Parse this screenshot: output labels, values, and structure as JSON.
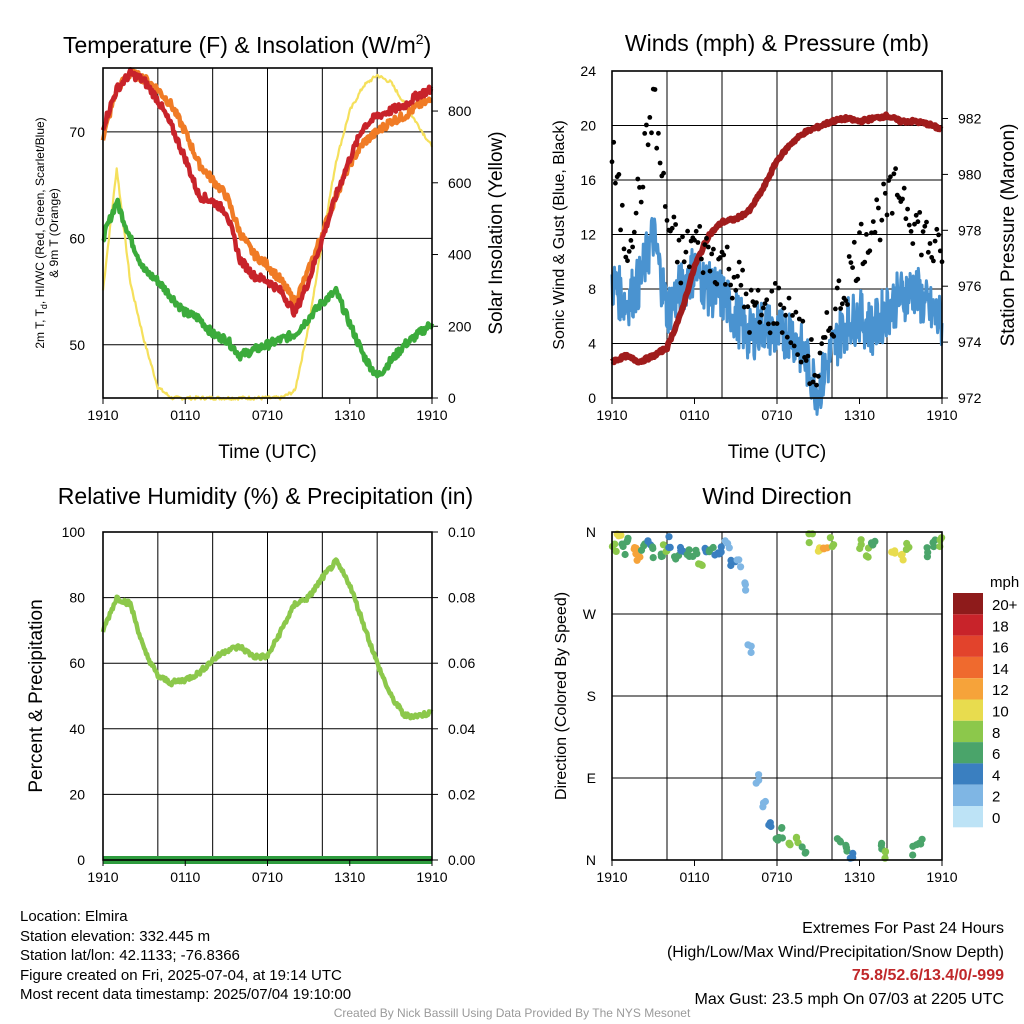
{
  "colors": {
    "temp_red": "#c8232a",
    "temp_orange": "#f07b25",
    "dewpoint_green": "#3bab3b",
    "insolation_yellow": "#f5e05c",
    "wind_blue": "#4a93d0",
    "gust_black": "#000000",
    "pressure_maroon": "#a01c1c",
    "rh_green": "#8cc84b",
    "precip_green": "#2e9c3e",
    "extremes_red": "#c0282a",
    "credit_gray": "#9a9a9a"
  },
  "time_ticks": [
    "1910",
    "0110",
    "0710",
    "1310",
    "1910"
  ],
  "station": {
    "location": "Location: Elmira",
    "elevation": "Station elevation: 332.445 m",
    "latlon": "Station lat/lon: 42.1133; -76.8366",
    "created": "Figure created on Fri, 2025-07-04, at 19:14 UTC",
    "recent": "Most recent data timestamp: 2025/07/04 19:10:00"
  },
  "extremes": {
    "title": "Extremes For Past 24 Hours",
    "legend": "(High/Low/Max Wind/Precipitation/Snow Depth)",
    "values": "75.8/52.6/13.4/0/-999",
    "gust": "Max Gust: 23.5 mph On 07/03 at 2205 UTC"
  },
  "credit": "Created By Nick Bassill Using Data Provided By The NYS Mesonet",
  "chart_data": [
    {
      "id": "temperature",
      "type": "line",
      "title": "Temperature (F) & Insolation (W/m²)",
      "xlabel": "Time (UTC)",
      "ylabel_left": "2m T, Td, HI/WC (Red, Green, Scarlet/Blue) & 9m T (Orange)",
      "ylabel_right": "Solar Insolation (Yellow)",
      "ylim_left": [
        45,
        76
      ],
      "ylim_right": [
        0,
        920
      ],
      "yticks_left": [
        50,
        60,
        70
      ],
      "yticks_right": [
        0,
        200,
        400,
        600,
        800
      ],
      "x": [
        0,
        1,
        2,
        3,
        4,
        5,
        6,
        7,
        8,
        9,
        10,
        11,
        12,
        13,
        14,
        15,
        16,
        17,
        18,
        19,
        20,
        21,
        22,
        23,
        24
      ],
      "series": [
        {
          "name": "2m T",
          "axis": "left",
          "color": "#c8232a",
          "values": [
            70.5,
            74.0,
            75.5,
            74.8,
            73.0,
            70.5,
            67.5,
            64.0,
            63.5,
            62.5,
            58.0,
            56.5,
            56.0,
            55.0,
            53.0,
            56.0,
            60.0,
            64.0,
            67.5,
            70.5,
            71.5,
            72.0,
            72.5,
            73.5,
            74.0
          ]
        },
        {
          "name": "9m T",
          "axis": "left",
          "color": "#f07b25",
          "values": [
            69.5,
            74.0,
            75.5,
            75.0,
            74.0,
            72.5,
            70.0,
            67.0,
            65.5,
            64.0,
            60.5,
            58.5,
            57.5,
            56.0,
            54.0,
            57.0,
            60.5,
            64.0,
            67.0,
            69.0,
            70.0,
            71.0,
            71.5,
            72.5,
            73.0
          ]
        },
        {
          "name": "Td",
          "axis": "left",
          "color": "#3bab3b",
          "values": [
            60.0,
            63.5,
            60.0,
            57.0,
            56.0,
            54.5,
            53.0,
            52.5,
            51.0,
            50.5,
            49.0,
            49.5,
            50.0,
            50.5,
            51.0,
            52.5,
            54.0,
            55.0,
            52.0,
            49.0,
            47.0,
            48.5,
            50.0,
            51.0,
            52.0
          ]
        },
        {
          "name": "Insolation",
          "axis": "right",
          "color": "#f5e05c",
          "values": [
            300,
            640,
            320,
            160,
            30,
            0,
            0,
            0,
            0,
            0,
            0,
            0,
            0,
            0,
            20,
            200,
            440,
            660,
            800,
            870,
            900,
            880,
            820,
            760,
            700
          ]
        }
      ]
    },
    {
      "id": "winds",
      "type": "line",
      "title": "Winds (mph) & Pressure (mb)",
      "xlabel": "Time (UTC)",
      "ylabel_left": "Sonic Wind & Gust (Blue, Black)",
      "ylabel_right": "Station Pressure (Maroon)",
      "ylim_left": [
        0,
        24
      ],
      "ylim_right": [
        972,
        983.7
      ],
      "yticks_left": [
        0,
        4,
        8,
        12,
        16,
        20,
        24
      ],
      "yticks_right": [
        972,
        974,
        976,
        978,
        980,
        982
      ],
      "x": [
        0,
        1,
        2,
        3,
        4,
        5,
        6,
        7,
        8,
        9,
        10,
        11,
        12,
        13,
        14,
        15,
        16,
        17,
        18,
        19,
        20,
        21,
        22,
        23,
        24
      ],
      "series": [
        {
          "name": "Sonic Wind",
          "axis": "left",
          "color": "#4a93d0",
          "values": [
            8.5,
            7.0,
            8.5,
            12.0,
            6.5,
            8.0,
            9.5,
            8.0,
            7.5,
            6.0,
            4.5,
            5.5,
            4.5,
            5.0,
            3.0,
            0.5,
            3.5,
            5.5,
            6.0,
            5.0,
            6.5,
            7.5,
            8.0,
            6.5,
            5.5
          ]
        },
        {
          "name": "Gust",
          "axis": "left",
          "color": "#000000",
          "values": [
            18.0,
            11.0,
            15.0,
            22.0,
            13.0,
            10.0,
            11.5,
            10.5,
            10.0,
            9.0,
            6.5,
            6.0,
            7.0,
            5.5,
            3.5,
            1.5,
            6.0,
            8.5,
            11.0,
            13.0,
            14.0,
            15.5,
            13.0,
            11.5,
            10.0
          ]
        },
        {
          "name": "Pressure",
          "axis": "right",
          "color": "#a01c1c",
          "values": [
            973.3,
            973.5,
            973.3,
            973.5,
            973.8,
            975.0,
            976.7,
            977.8,
            978.3,
            978.4,
            978.7,
            979.5,
            980.5,
            981.1,
            981.5,
            981.7,
            981.9,
            982.0,
            981.9,
            982.0,
            982.1,
            981.9,
            981.9,
            981.8,
            981.6
          ]
        }
      ]
    },
    {
      "id": "humidity",
      "type": "line",
      "title": "Relative Humidity (%) & Precipitation (in)",
      "ylabel_left": "Percent & Precipitation",
      "ylim_left": [
        0,
        100
      ],
      "ylim_right": [
        0,
        0.1
      ],
      "yticks_left": [
        0,
        20,
        40,
        60,
        80,
        100
      ],
      "yticks_right": [
        "0.00",
        "0.02",
        "0.04",
        "0.06",
        "0.08",
        "0.10"
      ],
      "x": [
        0,
        1,
        2,
        3,
        4,
        5,
        6,
        7,
        8,
        9,
        10,
        11,
        12,
        13,
        14,
        15,
        16,
        17,
        18,
        19,
        20,
        21,
        22,
        23,
        24
      ],
      "series": [
        {
          "name": "RH",
          "axis": "left",
          "color": "#8cc84b",
          "values": [
            70,
            80,
            78,
            64,
            56,
            54,
            55,
            57,
            61,
            64,
            65,
            62,
            62,
            70,
            78,
            80,
            86,
            91,
            84,
            72,
            60,
            50,
            44,
            44,
            45
          ]
        },
        {
          "name": "Precipitation",
          "axis": "right",
          "color": "#2e9c3e",
          "values": [
            0,
            0,
            0,
            0,
            0,
            0,
            0,
            0,
            0,
            0,
            0,
            0,
            0,
            0,
            0,
            0,
            0,
            0,
            0,
            0,
            0,
            0,
            0,
            0,
            0
          ]
        }
      ]
    },
    {
      "id": "direction",
      "type": "scatter",
      "title": "Wind Direction",
      "ylabel_left": "Direction (Colored By Speed)",
      "yticks_left": [
        "N",
        "E",
        "S",
        "W",
        "N"
      ],
      "ylim_left": [
        0,
        360
      ],
      "legend_title": "mph",
      "legend_labels": [
        "20+",
        "18",
        "16",
        "14",
        "12",
        "10",
        "8",
        "6",
        "4",
        "2",
        "0"
      ],
      "legend_colors": [
        "#8e1b1b",
        "#c8232a",
        "#e2432c",
        "#ef6a2e",
        "#f6a33a",
        "#e8dc4e",
        "#8cc84b",
        "#4aa46a",
        "#3a7fc0",
        "#7fb6e4",
        "#bde3f6"
      ],
      "points": [
        {
          "x": 0.2,
          "dir": 345,
          "speed": 8
        },
        {
          "x": 0.5,
          "dir": 358,
          "speed": 9
        },
        {
          "x": 0.8,
          "dir": 340,
          "speed": 6
        },
        {
          "x": 1.2,
          "dir": 352,
          "speed": 5
        },
        {
          "x": 1.6,
          "dir": 343,
          "speed": 12
        },
        {
          "x": 1.9,
          "dir": 335,
          "speed": 11
        },
        {
          "x": 2.3,
          "dir": 345,
          "speed": 6
        },
        {
          "x": 2.7,
          "dir": 350,
          "speed": 4
        },
        {
          "x": 3.1,
          "dir": 338,
          "speed": 5
        },
        {
          "x": 3.5,
          "dir": 332,
          "speed": 6
        },
        {
          "x": 3.9,
          "dir": 340,
          "speed": 7
        },
        {
          "x": 4.3,
          "dir": 348,
          "speed": 4
        },
        {
          "x": 4.7,
          "dir": 333,
          "speed": 6
        },
        {
          "x": 5.1,
          "dir": 342,
          "speed": 4
        },
        {
          "x": 5.5,
          "dir": 336,
          "speed": 6
        },
        {
          "x": 6.0,
          "dir": 336,
          "speed": 5
        },
        {
          "x": 6.4,
          "dir": 330,
          "speed": 7
        },
        {
          "x": 6.8,
          "dir": 340,
          "speed": 3
        },
        {
          "x": 7.2,
          "dir": 345,
          "speed": 5
        },
        {
          "x": 7.6,
          "dir": 333,
          "speed": 3
        },
        {
          "x": 8.0,
          "dir": 340,
          "speed": 4
        },
        {
          "x": 8.4,
          "dir": 348,
          "speed": 2
        },
        {
          "x": 8.8,
          "dir": 330,
          "speed": 3
        },
        {
          "x": 9.2,
          "dir": 325,
          "speed": 1
        },
        {
          "x": 9.6,
          "dir": 300,
          "speed": 2
        },
        {
          "x": 10.0,
          "dir": 230,
          "speed": 2
        },
        {
          "x": 10.5,
          "dir": 90,
          "speed": 1
        },
        {
          "x": 11.0,
          "dir": 60,
          "speed": 2
        },
        {
          "x": 11.5,
          "dir": 40,
          "speed": 4
        },
        {
          "x": 12.0,
          "dir": 20,
          "speed": 5
        },
        {
          "x": 12.5,
          "dir": 30,
          "speed": 6
        },
        {
          "x": 13.0,
          "dir": 15,
          "speed": 8
        },
        {
          "x": 13.5,
          "dir": 25,
          "speed": 7
        },
        {
          "x": 14.0,
          "dir": 10,
          "speed": 6
        },
        {
          "x": 14.5,
          "dir": 355,
          "speed": 7
        },
        {
          "x": 15.0,
          "dir": 345,
          "speed": 9
        },
        {
          "x": 15.5,
          "dir": 340,
          "speed": 11
        },
        {
          "x": 16.0,
          "dir": 350,
          "speed": 8
        },
        {
          "x": 16.5,
          "dir": 20,
          "speed": 5
        },
        {
          "x": 17.0,
          "dir": 10,
          "speed": 6
        },
        {
          "x": 17.5,
          "dir": 5,
          "speed": 4
        },
        {
          "x": 18.0,
          "dir": 345,
          "speed": 8
        },
        {
          "x": 18.5,
          "dir": 338,
          "speed": 7
        },
        {
          "x": 19.0,
          "dir": 350,
          "speed": 6
        },
        {
          "x": 19.5,
          "dir": 15,
          "speed": 5
        },
        {
          "x": 20.0,
          "dir": 5,
          "speed": 7
        },
        {
          "x": 20.5,
          "dir": 342,
          "speed": 9
        },
        {
          "x": 21.0,
          "dir": 335,
          "speed": 10
        },
        {
          "x": 21.5,
          "dir": 345,
          "speed": 8
        },
        {
          "x": 22.0,
          "dir": 10,
          "speed": 6
        },
        {
          "x": 22.5,
          "dir": 20,
          "speed": 5
        },
        {
          "x": 23.0,
          "dir": 338,
          "speed": 6
        },
        {
          "x": 23.5,
          "dir": 345,
          "speed": 5
        },
        {
          "x": 24.0,
          "dir": 350,
          "speed": 7
        }
      ]
    }
  ]
}
